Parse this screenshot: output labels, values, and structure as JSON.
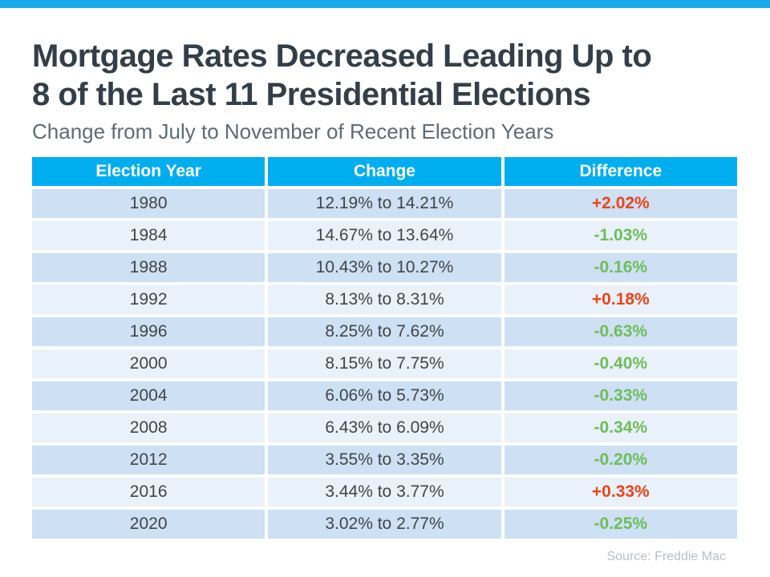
{
  "slide": {
    "title_line1": "Mortgage Rates Decreased Leading Up to",
    "title_line2": "8 of the Last 11 Presidential Elections",
    "subtitle": "Change from July to November of Recent Election Years",
    "source": "Source: Freddie Mac"
  },
  "colors": {
    "top_bar": "#1AA9EC",
    "header_bg": "#00AEEF",
    "header_text": "#FFFFFF",
    "row_odd": "#CDE0F4",
    "row_even": "#E9F1FA",
    "increase": "#F04318",
    "decrease": "#6DBE58",
    "title_text": "#333E48",
    "subtitle_text": "#5E6B76",
    "cell_text": "#404548",
    "source_text": "#B9BFC6"
  },
  "table": {
    "headers": [
      "Election Year",
      "Change",
      "Difference"
    ],
    "rows": [
      {
        "year": "1980",
        "change": "12.19% to 14.21%",
        "difference": "+2.02%",
        "direction": "increase"
      },
      {
        "year": "1984",
        "change": "14.67% to 13.64%",
        "difference": "-1.03%",
        "direction": "decrease"
      },
      {
        "year": "1988",
        "change": "10.43% to 10.27%",
        "difference": "-0.16%",
        "direction": "decrease"
      },
      {
        "year": "1992",
        "change": "8.13% to 8.31%",
        "difference": "+0.18%",
        "direction": "increase"
      },
      {
        "year": "1996",
        "change": "8.25% to 7.62%",
        "difference": "-0.63%",
        "direction": "decrease"
      },
      {
        "year": "2000",
        "change": "8.15% to 7.75%",
        "difference": "-0.40%",
        "direction": "decrease"
      },
      {
        "year": "2004",
        "change": "6.06% to 5.73%",
        "difference": "-0.33%",
        "direction": "decrease"
      },
      {
        "year": "2008",
        "change": "6.43% to 6.09%",
        "difference": "-0.34%",
        "direction": "decrease"
      },
      {
        "year": "2012",
        "change": "3.55% to 3.35%",
        "difference": "-0.20%",
        "direction": "decrease"
      },
      {
        "year": "2016",
        "change": "3.44% to 3.77%",
        "difference": "+0.33%",
        "direction": "increase"
      },
      {
        "year": "2020",
        "change": "3.02% to 2.77%",
        "difference": "-0.25%",
        "direction": "decrease"
      }
    ]
  },
  "chart_data": {
    "type": "table",
    "title": "Mortgage Rates Decreased Leading Up to 8 of the Last 11 Presidential Elections",
    "subtitle": "Change from July to November of Recent Election Years",
    "columns": [
      "Election Year",
      "Change",
      "Difference"
    ],
    "rows": [
      {
        "election_year": 1980,
        "july_rate_pct": 12.19,
        "november_rate_pct": 14.21,
        "difference_pct": 2.02
      },
      {
        "election_year": 1984,
        "july_rate_pct": 14.67,
        "november_rate_pct": 13.64,
        "difference_pct": -1.03
      },
      {
        "election_year": 1988,
        "july_rate_pct": 10.43,
        "november_rate_pct": 10.27,
        "difference_pct": -0.16
      },
      {
        "election_year": 1992,
        "july_rate_pct": 8.13,
        "november_rate_pct": 8.31,
        "difference_pct": 0.18
      },
      {
        "election_year": 1996,
        "july_rate_pct": 8.25,
        "november_rate_pct": 7.62,
        "difference_pct": -0.63
      },
      {
        "election_year": 2000,
        "july_rate_pct": 8.15,
        "november_rate_pct": 7.75,
        "difference_pct": -0.4
      },
      {
        "election_year": 2004,
        "july_rate_pct": 6.06,
        "november_rate_pct": 5.73,
        "difference_pct": -0.33
      },
      {
        "election_year": 2008,
        "july_rate_pct": 6.43,
        "november_rate_pct": 6.09,
        "difference_pct": -0.34
      },
      {
        "election_year": 2012,
        "july_rate_pct": 3.55,
        "november_rate_pct": 3.35,
        "difference_pct": -0.2
      },
      {
        "election_year": 2016,
        "july_rate_pct": 3.44,
        "november_rate_pct": 3.77,
        "difference_pct": 0.33
      },
      {
        "election_year": 2020,
        "july_rate_pct": 3.02,
        "november_rate_pct": 2.77,
        "difference_pct": -0.25
      }
    ],
    "source": "Source: Freddie Mac"
  }
}
